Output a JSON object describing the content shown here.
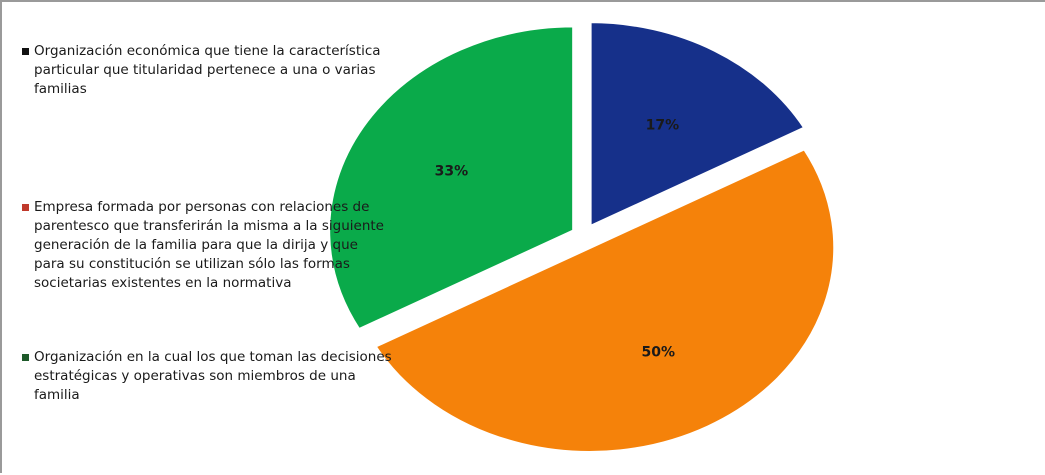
{
  "chart_data": {
    "type": "pie",
    "slices": [
      {
        "label": "Organización económica que tiene la característica particular que titularidad pertenece a una o varias familias",
        "value": 17,
        "display": "17%",
        "color": "#16308a",
        "exploded": true
      },
      {
        "label": "Empresa formada por personas con relaciones de parentesco que transferirán la misma a la siguiente generación de la familia para que la dirija y que para su constitución se utilizan sólo las formas societarias existentes en la normativa",
        "value": 50,
        "display": "50%",
        "color": "#f5820a",
        "exploded": true
      },
      {
        "label": "Organización en la cual los que toman las decisiones estratégicas y operativas son miembros de una familia",
        "value": 33,
        "display": "33%",
        "color": "#0aaa4a",
        "exploded": true
      }
    ],
    "legend_colors": [
      "#111111",
      "#c0392b",
      "#1e5a2a"
    ],
    "legend_position": "left"
  }
}
